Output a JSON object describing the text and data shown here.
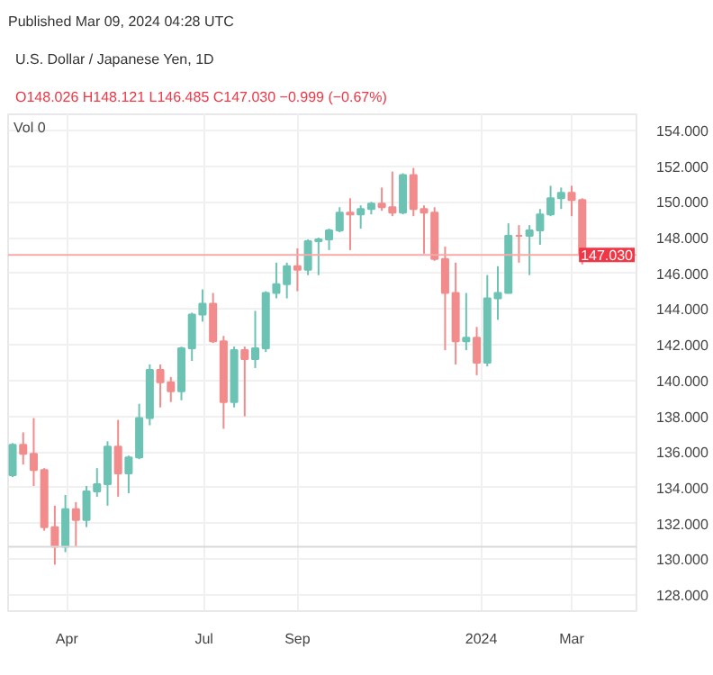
{
  "chart_data": {
    "type": "candlestick",
    "title": "U.S. Dollar / Japanese Yen, 1D",
    "subtitle": "Published Mar 09, 2024 04:28 UTC",
    "annotations": [
      "O148.026 H148.121 L146.485 C147.030 −0.999 (−0.67%)",
      "Vol 0"
    ],
    "x": [
      "2023-02-24",
      "2023-03-03",
      "2023-03-10",
      "2023-03-17",
      "2023-03-24",
      "2023-03-31",
      "2023-04-07",
      "2023-04-14",
      "2023-04-21",
      "2023-04-28",
      "2023-05-05",
      "2023-05-12",
      "2023-05-19",
      "2023-05-26",
      "2023-06-02",
      "2023-06-09",
      "2023-06-16",
      "2023-06-23",
      "2023-06-30",
      "2023-07-07",
      "2023-07-14",
      "2023-07-21",
      "2023-07-28",
      "2023-08-04",
      "2023-08-11",
      "2023-08-18",
      "2023-08-25",
      "2023-09-01",
      "2023-09-08",
      "2023-09-15",
      "2023-09-22",
      "2023-09-29",
      "2023-10-06",
      "2023-10-13",
      "2023-10-20",
      "2023-10-27",
      "2023-11-03",
      "2023-11-10",
      "2023-11-17",
      "2023-11-24",
      "2023-12-01",
      "2023-12-08",
      "2023-12-15",
      "2023-12-22",
      "2023-12-29",
      "2024-01-05",
      "2024-01-12",
      "2024-01-19",
      "2024-01-26",
      "2024-02-02",
      "2024-02-09",
      "2024-02-16",
      "2024-02-23",
      "2024-03-01",
      "2024-03-08"
    ],
    "ohlc": [
      [
        134.7,
        136.5,
        134.6,
        136.4
      ],
      [
        136.4,
        137.1,
        135.3,
        135.9
      ],
      [
        135.9,
        137.9,
        134.1,
        135.0
      ],
      [
        135.0,
        135.1,
        131.6,
        131.8
      ],
      [
        131.8,
        133.0,
        129.7,
        130.7
      ],
      [
        130.7,
        133.6,
        130.4,
        132.8
      ],
      [
        132.8,
        133.2,
        130.7,
        132.2
      ],
      [
        132.2,
        134.1,
        131.8,
        133.8
      ],
      [
        133.8,
        135.1,
        133.5,
        134.2
      ],
      [
        134.2,
        136.6,
        133.0,
        136.3
      ],
      [
        136.3,
        137.8,
        133.5,
        134.8
      ],
      [
        134.8,
        135.8,
        133.7,
        135.7
      ],
      [
        135.7,
        138.7,
        135.6,
        137.9
      ],
      [
        137.9,
        140.9,
        137.5,
        140.6
      ],
      [
        140.6,
        140.9,
        138.5,
        139.9
      ],
      [
        139.9,
        140.2,
        138.8,
        139.4
      ],
      [
        139.4,
        141.9,
        138.9,
        141.8
      ],
      [
        141.8,
        143.8,
        141.1,
        143.7
      ],
      [
        143.7,
        145.1,
        143.3,
        144.3
      ],
      [
        144.3,
        144.9,
        142.1,
        142.2
      ],
      [
        142.2,
        142.5,
        137.3,
        138.8
      ],
      [
        138.8,
        141.9,
        138.5,
        141.7
      ],
      [
        141.7,
        141.9,
        138.0,
        141.2
      ],
      [
        141.2,
        143.9,
        140.7,
        141.8
      ],
      [
        141.8,
        145.0,
        141.6,
        144.9
      ],
      [
        144.9,
        146.6,
        144.6,
        145.4
      ],
      [
        145.4,
        146.6,
        144.6,
        146.4
      ],
      [
        146.4,
        147.4,
        145.0,
        146.2
      ],
      [
        146.2,
        147.9,
        145.9,
        147.8
      ],
      [
        147.8,
        148.0,
        145.9,
        147.9
      ],
      [
        147.9,
        148.5,
        147.3,
        148.4
      ],
      [
        148.4,
        149.7,
        148.3,
        149.4
      ],
      [
        149.4,
        150.2,
        147.3,
        149.3
      ],
      [
        149.3,
        149.8,
        148.5,
        149.6
      ],
      [
        149.6,
        150.0,
        149.3,
        149.9
      ],
      [
        149.9,
        150.8,
        149.5,
        149.7
      ],
      [
        149.7,
        151.7,
        149.2,
        149.4
      ],
      [
        149.4,
        151.6,
        149.3,
        151.5
      ],
      [
        151.5,
        151.9,
        149.2,
        149.6
      ],
      [
        149.6,
        149.8,
        147.1,
        149.4
      ],
      [
        149.4,
        149.7,
        146.7,
        146.8
      ],
      [
        146.8,
        147.5,
        141.7,
        144.9
      ],
      [
        144.9,
        146.6,
        140.9,
        142.2
      ],
      [
        142.2,
        144.9,
        141.7,
        142.4
      ],
      [
        142.4,
        143.0,
        140.3,
        141.0
      ],
      [
        141.0,
        145.9,
        140.8,
        144.6
      ],
      [
        144.6,
        146.4,
        143.4,
        144.9
      ],
      [
        144.9,
        148.8,
        144.9,
        148.1
      ],
      [
        148.1,
        148.7,
        146.6,
        148.1
      ],
      [
        148.1,
        148.7,
        145.9,
        148.4
      ],
      [
        148.4,
        149.6,
        147.6,
        149.3
      ],
      [
        149.3,
        150.9,
        149.2,
        150.2
      ],
      [
        150.2,
        150.8,
        149.6,
        150.5
      ],
      [
        150.5,
        150.9,
        149.2,
        150.1
      ],
      [
        150.1,
        150.2,
        146.5,
        147.0
      ]
    ],
    "colors": [
      "#6cc3b4",
      "#f28b8b",
      "#f28b8b",
      "#f28b8b",
      "#f28b8b",
      "#6cc3b4",
      "#f28b8b",
      "#6cc3b4",
      "#6cc3b4",
      "#6cc3b4",
      "#f28b8b",
      "#6cc3b4",
      "#6cc3b4",
      "#6cc3b4",
      "#f28b8b",
      "#f28b8b",
      "#6cc3b4",
      "#6cc3b4",
      "#6cc3b4",
      "#f28b8b",
      "#f28b8b",
      "#6cc3b4",
      "#f28b8b",
      "#6cc3b4",
      "#6cc3b4",
      "#6cc3b4",
      "#6cc3b4",
      "#f28b8b",
      "#6cc3b4",
      "#6cc3b4",
      "#6cc3b4",
      "#6cc3b4",
      "#f28b8b",
      "#6cc3b4",
      "#6cc3b4",
      "#f28b8b",
      "#f28b8b",
      "#6cc3b4",
      "#f28b8b",
      "#f28b8b",
      "#f28b8b",
      "#f28b8b",
      "#f28b8b",
      "#6cc3b4",
      "#f28b8b",
      "#6cc3b4",
      "#6cc3b4",
      "#6cc3b4",
      "#f28b8b",
      "#6cc3b4",
      "#6cc3b4",
      "#6cc3b4",
      "#6cc3b4",
      "#f28b8b",
      "#f28b8b"
    ],
    "xlim": [
      "2023-02-21",
      "2024-04-13"
    ],
    "xticks": [
      {
        "value": "2023-04-01",
        "label": "Apr"
      },
      {
        "value": "2023-07-01",
        "label": "Jul"
      },
      {
        "value": "2023-09-01",
        "label": "Sep"
      },
      {
        "value": "2024-01-01",
        "label": "2024"
      },
      {
        "value": "2024-03-01",
        "label": "Mar"
      }
    ],
    "ylim": [
      127.1,
      154.9
    ],
    "yticks": [
      {
        "value": 128,
        "label": "128.000"
      },
      {
        "value": 130,
        "label": "130.000"
      },
      {
        "value": 132,
        "label": "132.000"
      },
      {
        "value": 134,
        "label": "134.000"
      },
      {
        "value": 136,
        "label": "136.000"
      },
      {
        "value": 138,
        "label": "138.000"
      },
      {
        "value": 140,
        "label": "140.000"
      },
      {
        "value": 142,
        "label": "142.000"
      },
      {
        "value": 144,
        "label": "144.000"
      },
      {
        "value": 146,
        "label": "146.000"
      },
      {
        "value": 148,
        "label": "148.000"
      },
      {
        "value": 150,
        "label": "150.000"
      },
      {
        "value": 152,
        "label": "152.000"
      },
      {
        "value": 154,
        "label": "154.000"
      }
    ],
    "ref_lines": [
      {
        "axis": "y",
        "value": 147.03,
        "label": "147.030",
        "color": "#f7a8a8"
      },
      {
        "axis": "y",
        "value": 130.7,
        "color": "#d9d9d9"
      }
    ],
    "grid": true
  }
}
